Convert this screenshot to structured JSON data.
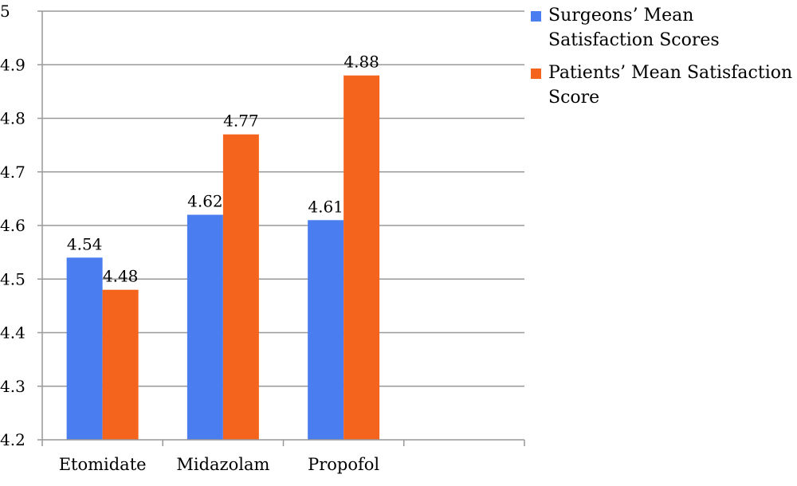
{
  "chart_data": {
    "type": "bar",
    "categories": [
      "Etomidate",
      "Midazolam",
      "Propofol"
    ],
    "series": [
      {
        "name": "Surgeons’ Mean Satisfaction Scores",
        "color": "#4a7ef0",
        "values": [
          4.54,
          4.62,
          4.61
        ]
      },
      {
        "name": "Patients’ Mean Satisfaction Score",
        "color": "#f5641c",
        "values": [
          4.48,
          4.77,
          4.88
        ]
      }
    ],
    "data_labels": [
      [
        "4.54",
        "4.62",
        "4.61"
      ],
      [
        "4.48",
        "4.77",
        "4.88"
      ]
    ],
    "ylim": [
      4.2,
      5
    ],
    "yticks": [
      4.2,
      4.3,
      4.4,
      4.5,
      4.6,
      4.7,
      4.8,
      4.9,
      5
    ],
    "ytick_labels": [
      "4.2",
      "4.3",
      "4.4",
      "4.5",
      "4.6",
      "4.7",
      "4.8",
      "4.9",
      "5"
    ],
    "grid": true,
    "legend_position": "top-right",
    "title": "",
    "xlabel": "",
    "ylabel": ""
  }
}
